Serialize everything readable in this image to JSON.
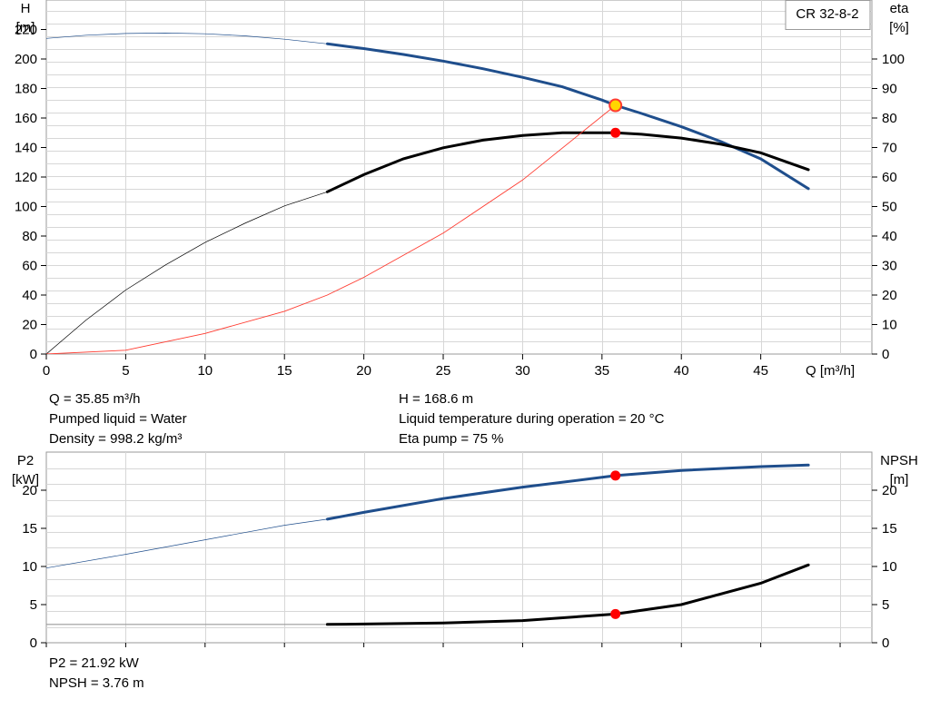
{
  "chart_data": [
    {
      "type": "line",
      "model": "CR 32-8-2",
      "x_unit_label": "Q [m³/h]",
      "x_ticks": [
        "0",
        "5",
        "10",
        "15",
        "20",
        "25",
        "30",
        "35",
        "40",
        "45"
      ],
      "xlim": [
        0,
        52
      ],
      "y_left": {
        "label": [
          "H",
          "[m]"
        ],
        "ylim": [
          0,
          240
        ],
        "ticks": [
          "0",
          "20",
          "40",
          "60",
          "80",
          "100",
          "120",
          "140",
          "160",
          "180",
          "200",
          "220"
        ]
      },
      "y_right": {
        "label": [
          "eta",
          "[%]"
        ],
        "ylim": [
          0,
          120
        ],
        "ticks": [
          "0",
          "10",
          "20",
          "30",
          "40",
          "50",
          "60",
          "70",
          "80",
          "90",
          "100"
        ]
      },
      "grid": true,
      "series": [
        {
          "key": "head",
          "axis": "left",
          "color": "#1f4e8c",
          "allowed_from_q": 17.7,
          "points": [
            [
              0,
              214
            ],
            [
              2.5,
              216.1
            ],
            [
              5,
              217.3
            ],
            [
              7.5,
              217.6
            ],
            [
              10,
              217.1
            ],
            [
              12.5,
              215.7
            ],
            [
              15,
              213.4
            ],
            [
              17.7,
              210.3
            ],
            [
              20,
              207.1
            ],
            [
              22.5,
              203.1
            ],
            [
              25,
              198.6
            ],
            [
              27.5,
              193.4
            ],
            [
              30,
              187.6
            ],
            [
              32.5,
              181.2
            ],
            [
              35,
              172.2
            ],
            [
              35.85,
              168.6
            ],
            [
              37.5,
              163.1
            ],
            [
              40,
              154.1
            ],
            [
              42.5,
              144.0
            ],
            [
              45,
              132.3
            ],
            [
              48,
              112.1
            ]
          ]
        },
        {
          "key": "efficiency",
          "axis": "right",
          "color": "#000000",
          "allowed_from_q": 17.7,
          "points": [
            [
              0,
              0
            ],
            [
              2.5,
              11.5
            ],
            [
              5,
              21.7
            ],
            [
              7.5,
              30.2
            ],
            [
              10,
              37.8
            ],
            [
              12.5,
              44.3
            ],
            [
              15,
              50.2
            ],
            [
              17.7,
              55
            ],
            [
              20,
              60.8
            ],
            [
              22.5,
              66.2
            ],
            [
              25,
              69.9
            ],
            [
              27.5,
              72.5
            ],
            [
              30,
              74.1
            ],
            [
              32.5,
              75
            ],
            [
              35.85,
              75
            ],
            [
              37.5,
              74.5
            ],
            [
              40,
              73.2
            ],
            [
              42.5,
              71.1
            ],
            [
              45,
              68.2
            ],
            [
              48,
              62.5
            ]
          ]
        },
        {
          "key": "system-curve",
          "axis": "left",
          "color": "#ff3b30",
          "allowed_from_q": 0,
          "points": [
            [
              0,
              0
            ],
            [
              5,
              2.6
            ],
            [
              10,
              14
            ],
            [
              15,
              29
            ],
            [
              17.7,
              40
            ],
            [
              20,
              52
            ],
            [
              25,
              82
            ],
            [
              30,
              118
            ],
            [
              35.85,
              168.6
            ]
          ]
        }
      ],
      "duty_points": [
        {
          "key": "head-duty",
          "axis": "left",
          "q": 35.85,
          "value": 168.6,
          "fill": "#ffd700"
        },
        {
          "key": "eta-duty",
          "axis": "right",
          "q": 35.85,
          "value": 75,
          "fill": "#ff0000"
        }
      ]
    },
    {
      "type": "line",
      "x_ticks_hidden": true,
      "xlim": [
        0,
        52
      ],
      "y_left": {
        "label": [
          "P2",
          "[kW]"
        ],
        "ylim": [
          0,
          25
        ],
        "ticks": [
          "0",
          "5",
          "10",
          "15",
          "20"
        ]
      },
      "y_right": {
        "label": [
          "NPSH",
          "[m]"
        ],
        "ylim": [
          0,
          25
        ],
        "ticks": [
          "0",
          "5",
          "10",
          "15",
          "20"
        ]
      },
      "grid": true,
      "series": [
        {
          "key": "power",
          "axis": "left",
          "color": "#1f4e8c",
          "allowed_from_q": 17.7,
          "points": [
            [
              0,
              9.8
            ],
            [
              5,
              11.6
            ],
            [
              10,
              13.5
            ],
            [
              15,
              15.4
            ],
            [
              17.7,
              16.2
            ],
            [
              20,
              17.1
            ],
            [
              25,
              18.9
            ],
            [
              30,
              20.4
            ],
            [
              35.85,
              21.92
            ],
            [
              40,
              22.6
            ],
            [
              45,
              23.1
            ],
            [
              48,
              23.3
            ]
          ]
        },
        {
          "key": "npsh",
          "axis": "right",
          "color": "#000000",
          "allowed_from_q": 17.7,
          "points": [
            [
              0,
              2.4
            ],
            [
              17.7,
              2.4
            ],
            [
              20,
              2.45
            ],
            [
              25,
              2.6
            ],
            [
              30,
              2.9
            ],
            [
              35.85,
              3.76
            ],
            [
              40,
              5.0
            ],
            [
              45,
              7.8
            ],
            [
              48,
              10.2
            ]
          ]
        }
      ],
      "duty_points": [
        {
          "key": "power-duty",
          "axis": "left",
          "q": 35.85,
          "value": 21.92,
          "fill": "#ff0000"
        },
        {
          "key": "npsh-duty",
          "axis": "right",
          "q": 35.85,
          "value": 3.76,
          "fill": "#ff0000"
        }
      ]
    }
  ],
  "info_top": {
    "flow": "Q = 35.85 m³/h",
    "liquid": "Pumped liquid = Water",
    "density": "Density = 998.2 kg/m³",
    "head": "H = 168.6 m",
    "temperature": "Liquid temperature during operation = 20 °C",
    "eta": "Eta pump = 75 %"
  },
  "info_bottom": {
    "power": "P2 = 21.92 kW",
    "npsh": "NPSH = 3.76 m"
  }
}
